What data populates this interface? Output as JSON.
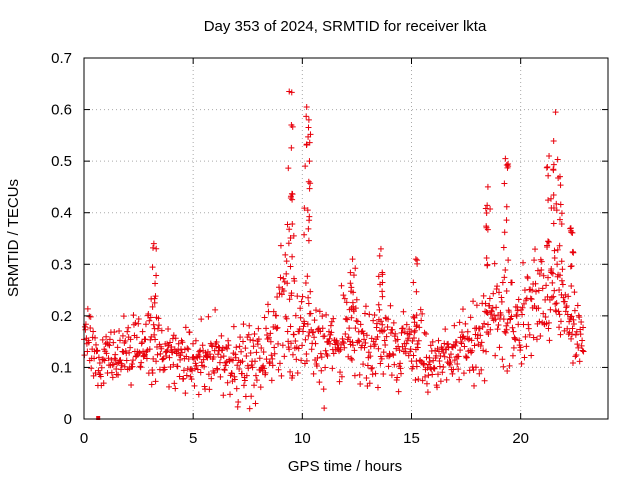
{
  "chart_data": {
    "type": "scatter",
    "title": "Day 353 of 2024, SRMTID for receiver lkta",
    "xlabel": "GPS time / hours",
    "ylabel": "SRMTID / TECUs",
    "xlim": [
      0,
      24
    ],
    "ylim": [
      0,
      0.7
    ],
    "x_ticks": [
      0,
      5,
      10,
      15,
      20
    ],
    "x_tick_labels": [
      "0",
      "5",
      "10",
      "15",
      "20"
    ],
    "y_ticks": [
      0,
      0.1,
      0.2,
      0.3,
      0.4,
      0.5,
      0.6,
      0.7
    ],
    "y_tick_labels": [
      "0",
      "0.1",
      "0.2",
      "0.3",
      "0.4",
      "0.5",
      "0.6",
      "0.7"
    ],
    "grid": true,
    "marker": "+",
    "color": "#e8000b",
    "series": [
      {
        "name": "SRMTID",
        "approx_profile": {
          "description": "baseline level and spread (TECU) per hour; points densely sampled between 0 and 23 h",
          "hours": [
            0,
            1,
            2,
            3,
            4,
            5,
            6,
            7,
            8,
            9,
            10,
            11,
            12,
            13,
            14,
            15,
            16,
            17,
            18,
            19,
            20,
            21,
            22,
            23
          ],
          "center": [
            0.15,
            0.12,
            0.13,
            0.15,
            0.12,
            0.12,
            0.12,
            0.1,
            0.12,
            0.2,
            0.17,
            0.15,
            0.16,
            0.14,
            0.15,
            0.14,
            0.11,
            0.12,
            0.15,
            0.22,
            0.18,
            0.24,
            0.22,
            0.17
          ],
          "spread": [
            0.05,
            0.04,
            0.04,
            0.05,
            0.04,
            0.04,
            0.04,
            0.04,
            0.05,
            0.08,
            0.06,
            0.06,
            0.05,
            0.05,
            0.05,
            0.05,
            0.04,
            0.04,
            0.05,
            0.07,
            0.06,
            0.08,
            0.07,
            0.03
          ]
        },
        "peaks": [
          {
            "x": 3.2,
            "y": 0.34
          },
          {
            "x": 9.4,
            "y": 0.635
          },
          {
            "x": 9.5,
            "y": 0.57
          },
          {
            "x": 10.2,
            "y": 0.605
          },
          {
            "x": 10.3,
            "y": 0.58
          },
          {
            "x": 12.3,
            "y": 0.31
          },
          {
            "x": 13.6,
            "y": 0.33
          },
          {
            "x": 15.2,
            "y": 0.31
          },
          {
            "x": 18.5,
            "y": 0.45
          },
          {
            "x": 19.3,
            "y": 0.505
          },
          {
            "x": 21.3,
            "y": 0.51
          },
          {
            "x": 21.6,
            "y": 0.595
          },
          {
            "x": 21.8,
            "y": 0.47
          },
          {
            "x": 22.3,
            "y": 0.37
          }
        ],
        "outliers": [
          {
            "x": 0.65,
            "y": 0.0
          }
        ]
      }
    ]
  }
}
